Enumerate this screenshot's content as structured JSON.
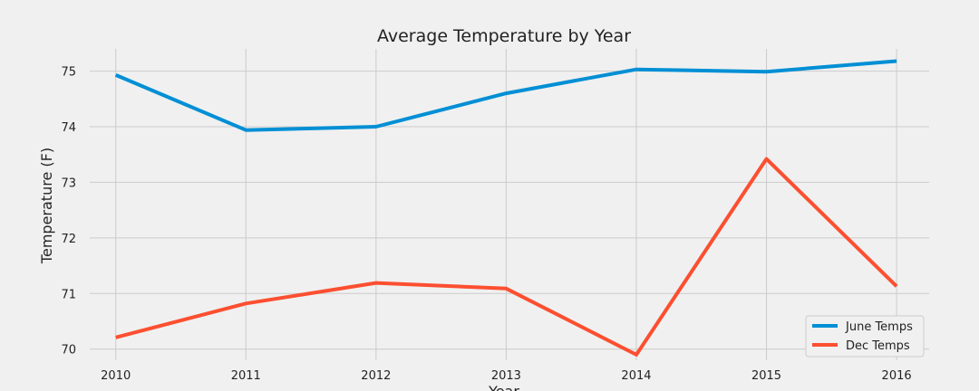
{
  "chart_data": {
    "type": "line",
    "title": "Average Temperature by Year",
    "xlabel": "Year",
    "ylabel": "Temperature (F)",
    "x": [
      2010,
      2011,
      2012,
      2013,
      2014,
      2015,
      2016
    ],
    "xlim": [
      2009.8,
      2016.25
    ],
    "ylim": [
      69.8,
      75.4
    ],
    "yticks": [
      70,
      71,
      72,
      73,
      74,
      75
    ],
    "grid": true,
    "legend_position": "bottom-right",
    "series": [
      {
        "name": "June Temps",
        "color": "#008fd5",
        "values": [
          74.93,
          73.94,
          74.0,
          74.6,
          75.03,
          74.99,
          75.18
        ]
      },
      {
        "name": "Dec Temps",
        "color": "#fc4f30",
        "values": [
          70.21,
          70.82,
          71.19,
          71.09,
          69.9,
          73.42,
          71.13
        ]
      }
    ]
  }
}
